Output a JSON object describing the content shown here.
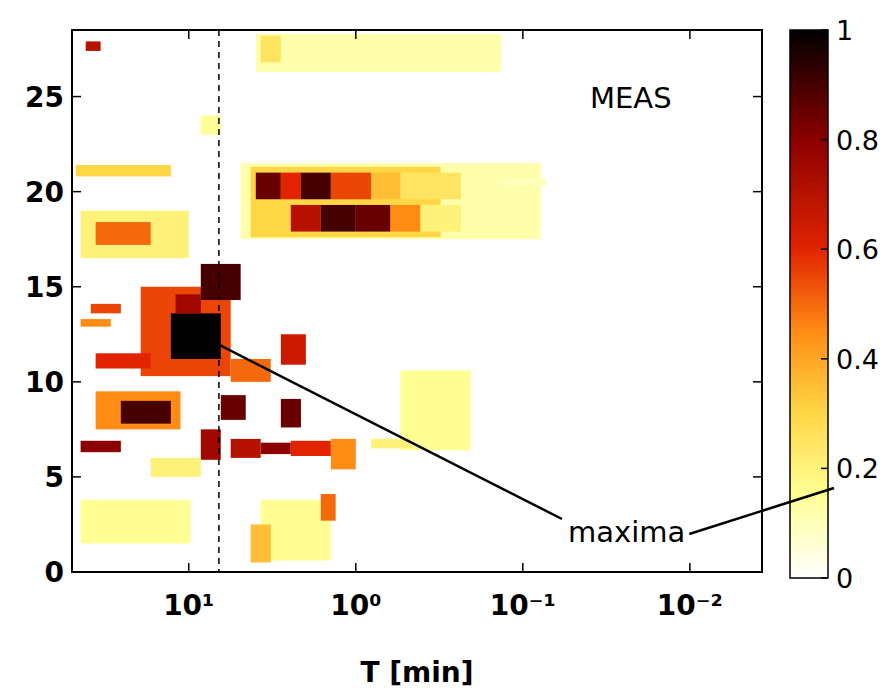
{
  "chart_data": {
    "type": "heatmap",
    "title": "MEAS",
    "x_label": "T [min]",
    "log": "x",
    "xlim": [
      50,
      0.0037
    ],
    "xticks": [
      {
        "value": 10,
        "label": "10¹"
      },
      {
        "value": 1,
        "label": "10⁰"
      },
      {
        "value": 0.1,
        "label": "10⁻¹"
      },
      {
        "value": 0.01,
        "label": "10⁻²"
      }
    ],
    "ylim": [
      0,
      28.5
    ],
    "yticks": [
      0,
      5,
      10,
      15,
      20,
      25
    ],
    "vline": 6.6,
    "colorbar": {
      "range": [
        0,
        1
      ],
      "ticks": [
        0,
        0.2,
        0.4,
        0.6,
        0.8,
        1
      ]
    },
    "annotations": [
      {
        "text": "maxima",
        "target": [
          7.5,
          12.2
        ]
      }
    ],
    "cells": [
      {
        "x": [
          4.89,
          0.078
        ],
        "y": [
          17.5,
          21.5
        ],
        "value": 0.12
      },
      {
        "x": [
          4.26,
          0.31
        ],
        "y": [
          17.6,
          21.3
        ],
        "value": 0.3
      },
      {
        "x": [
          3.97,
          2.81
        ],
        "y": [
          19.6,
          21.0
        ],
        "value": 0.85
      },
      {
        "x": [
          2.81,
          2.13
        ],
        "y": [
          19.6,
          21.0
        ],
        "value": 0.6
      },
      {
        "x": [
          2.13,
          1.41
        ],
        "y": [
          19.6,
          21.0
        ],
        "value": 0.9
      },
      {
        "x": [
          1.41,
          0.81
        ],
        "y": [
          19.6,
          21.0
        ],
        "value": 0.55
      },
      {
        "x": [
          0.81,
          0.54
        ],
        "y": [
          19.6,
          21.0
        ],
        "value": 0.35
      },
      {
        "x": [
          0.54,
          0.235
        ],
        "y": [
          19.6,
          21.0
        ],
        "value": 0.25
      },
      {
        "x": [
          2.45,
          1.62
        ],
        "y": [
          17.9,
          19.3
        ],
        "value": 0.7
      },
      {
        "x": [
          1.62,
          1.0
        ],
        "y": [
          17.9,
          19.3
        ],
        "value": 0.9
      },
      {
        "x": [
          1.0,
          0.62
        ],
        "y": [
          17.9,
          19.3
        ],
        "value": 0.85
      },
      {
        "x": [
          0.62,
          0.41
        ],
        "y": [
          17.9,
          19.3
        ],
        "value": 0.45
      },
      {
        "x": [
          0.41,
          0.235
        ],
        "y": [
          17.9,
          19.3
        ],
        "value": 0.2
      },
      {
        "x": [
          0.135,
          0.073
        ],
        "y": [
          20.3,
          20.7
        ],
        "value": 0.1
      },
      {
        "x": [
          44.4,
          10
        ],
        "y": [
          16.5,
          19.0
        ],
        "value": 0.2
      },
      {
        "x": [
          36.1,
          16.9
        ],
        "y": [
          17.2,
          18.4
        ],
        "value": 0.5
      },
      {
        "x": [
          47.5,
          12.8
        ],
        "y": [
          20.8,
          21.4
        ],
        "value": 0.3
      },
      {
        "x": [
          3.97,
          0.135
        ],
        "y": [
          26.3,
          28.3
        ],
        "value": 0.12
      },
      {
        "x": [
          3.71,
          2.81
        ],
        "y": [
          26.8,
          28.2
        ],
        "value": 0.25
      },
      {
        "x": [
          41.4,
          33.7
        ],
        "y": [
          27.4,
          27.9
        ],
        "value": 0.7
      },
      {
        "x": [
          8.47,
          6.43
        ],
        "y": [
          23.0,
          24.0
        ],
        "value": 0.15
      },
      {
        "x": [
          19.4,
          5.61
        ],
        "y": [
          10.3,
          15.0
        ],
        "value": 0.55
      },
      {
        "x": [
          12.8,
          6.43
        ],
        "y": [
          11.2,
          13.6
        ],
        "value": 1.0
      },
      {
        "x": [
          12.0,
          8.47
        ],
        "y": [
          13.6,
          14.6
        ],
        "value": 0.75
      },
      {
        "x": [
          8.47,
          4.89
        ],
        "y": [
          14.3,
          16.2
        ],
        "value": 0.9
      },
      {
        "x": [
          38.6,
          25.5
        ],
        "y": [
          13.6,
          14.1
        ],
        "value": 0.55
      },
      {
        "x": [
          44.4,
          29.3
        ],
        "y": [
          12.9,
          13.3
        ],
        "value": 0.45
      },
      {
        "x": [
          36.1,
          16.9
        ],
        "y": [
          10.7,
          11.5
        ],
        "value": 0.6
      },
      {
        "x": [
          5.61,
          3.23
        ],
        "y": [
          10.0,
          11.2
        ],
        "value": 0.5
      },
      {
        "x": [
          2.81,
          1.99
        ],
        "y": [
          10.9,
          12.5
        ],
        "value": 0.65
      },
      {
        "x": [
          0.54,
          0.205
        ],
        "y": [
          6.4,
          10.6
        ],
        "value": 0.15
      },
      {
        "x": [
          36.1,
          11.2
        ],
        "y": [
          7.5,
          9.5
        ],
        "value": 0.45
      },
      {
        "x": [
          25.5,
          12.8
        ],
        "y": [
          7.8,
          9.0
        ],
        "value": 0.9
      },
      {
        "x": [
          44.4,
          25.5
        ],
        "y": [
          6.3,
          6.9
        ],
        "value": 0.8
      },
      {
        "x": [
          6.43,
          4.56
        ],
        "y": [
          8.0,
          9.3
        ],
        "value": 0.85
      },
      {
        "x": [
          2.81,
          2.13
        ],
        "y": [
          7.6,
          9.1
        ],
        "value": 0.85
      },
      {
        "x": [
          8.47,
          6.43
        ],
        "y": [
          5.9,
          7.5
        ],
        "value": 0.75
      },
      {
        "x": [
          5.61,
          3.71
        ],
        "y": [
          6.0,
          7.0
        ],
        "value": 0.7
      },
      {
        "x": [
          3.71,
          2.45
        ],
        "y": [
          6.2,
          6.8
        ],
        "value": 0.8
      },
      {
        "x": [
          2.45,
          1.41
        ],
        "y": [
          6.1,
          6.9
        ],
        "value": 0.6
      },
      {
        "x": [
          1.41,
          1.0
        ],
        "y": [
          5.4,
          7.0
        ],
        "value": 0.45
      },
      {
        "x": [
          0.81,
          0.47
        ],
        "y": [
          6.5,
          7.0
        ],
        "value": 0.2
      },
      {
        "x": [
          16.9,
          8.47
        ],
        "y": [
          5.0,
          6.0
        ],
        "value": 0.2
      },
      {
        "x": [
          3.71,
          1.41
        ],
        "y": [
          0.6,
          3.8
        ],
        "value": 0.15
      },
      {
        "x": [
          4.26,
          3.23
        ],
        "y": [
          0.5,
          2.5
        ],
        "value": 0.35
      },
      {
        "x": [
          1.62,
          1.32
        ],
        "y": [
          2.7,
          4.1
        ],
        "value": 0.5
      },
      {
        "x": [
          44.4,
          9.73
        ],
        "y": [
          1.5,
          3.8
        ],
        "value": 0.15
      }
    ]
  }
}
